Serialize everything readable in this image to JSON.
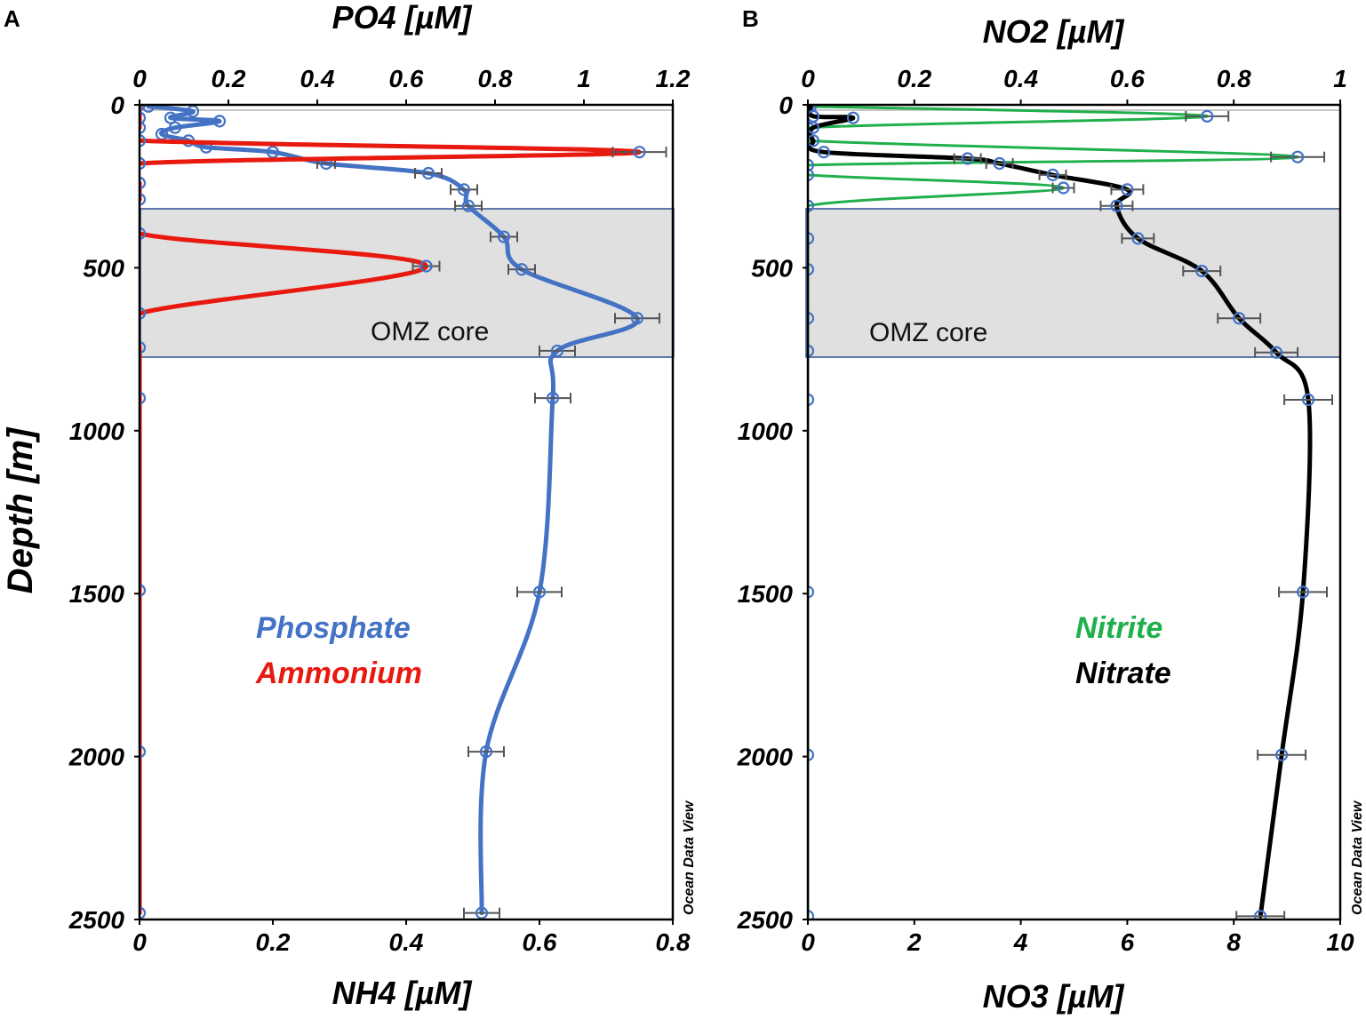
{
  "panels": {
    "A": {
      "letter": "A",
      "top_axis_title": "PO4 [µM]",
      "bottom_axis_title": "NH4 [µM]",
      "depth_title": "Depth [m]",
      "omz_label": "OMZ core",
      "watermark": "Ocean Data View",
      "legend": [
        {
          "label": "Phosphate",
          "color": "#4472c4"
        },
        {
          "label": "Ammonium",
          "color": "#e8190f"
        }
      ]
    },
    "B": {
      "letter": "B",
      "top_axis_title": "NO2 [µM]",
      "bottom_axis_title": "NO3 [µM]",
      "omz_label": "OMZ core",
      "watermark": "Ocean Data View",
      "legend": [
        {
          "label": "Nitrite",
          "color": "#1fb04c"
        },
        {
          "label": "Nitrate",
          "color": "#000000"
        }
      ]
    }
  },
  "chart_data": [
    {
      "type": "line",
      "panel": "A",
      "title": "",
      "ylabel": "Depth [m]",
      "ylim": [
        2500,
        0
      ],
      "yticks": [
        0,
        500,
        1000,
        1500,
        2000,
        2500
      ],
      "omz_core_depth_range": [
        315,
        770
      ],
      "top_axis": {
        "label": "PO4 [µM]",
        "lim": [
          0,
          1.2
        ],
        "ticks": [
          0,
          0.2,
          0.4,
          0.6,
          0.8,
          1,
          1.2
        ],
        "tick_labels": [
          "0",
          "0.2",
          "0.4",
          "0.6",
          "0.8",
          "1",
          "1.2"
        ]
      },
      "bottom_axis": {
        "label": "NH4 [µM]",
        "lim": [
          0,
          0.8
        ],
        "ticks": [
          0,
          0.2,
          0.4,
          0.6,
          0.8
        ],
        "tick_labels": [
          "0",
          "0.2",
          "0.4",
          "0.6",
          "0.8"
        ]
      },
      "series": [
        {
          "name": "Phosphate",
          "axis": "top",
          "color": "#4472c4",
          "depth": [
            5,
            20,
            40,
            50,
            70,
            90,
            110,
            130,
            145,
            180,
            210,
            260,
            310,
            405,
            505,
            655,
            755,
            900,
            1495,
            1985,
            2480
          ],
          "values": [
            0.02,
            0.12,
            0.07,
            0.18,
            0.08,
            0.05,
            0.11,
            0.15,
            0.3,
            0.42,
            0.65,
            0.73,
            0.74,
            0.82,
            0.86,
            1.12,
            0.94,
            0.93,
            0.9,
            0.78,
            0.77
          ],
          "xerr": [
            0,
            0,
            0,
            0,
            0,
            0,
            0,
            0,
            0,
            0.02,
            0.03,
            0.03,
            0.03,
            0.03,
            0.03,
            0.05,
            0.04,
            0.04,
            0.05,
            0.04,
            0.04
          ]
        },
        {
          "name": "Ammonium",
          "axis": "bottom",
          "color": "#e8190f",
          "depth": [
            0,
            40,
            70,
            110,
            145,
            180,
            240,
            290,
            395,
            495,
            640,
            745,
            900,
            1490,
            1985,
            2480
          ],
          "values": [
            0,
            0,
            0,
            0,
            0.75,
            0,
            0,
            0,
            0,
            0.43,
            0,
            0,
            0,
            0,
            0,
            0
          ],
          "xerr": [
            0,
            0,
            0,
            0,
            0.04,
            0,
            0,
            0,
            0,
            0.02,
            0,
            0,
            0,
            0,
            0,
            0
          ]
        }
      ]
    },
    {
      "type": "line",
      "panel": "B",
      "title": "",
      "ylabel": "Depth [m]",
      "ylim": [
        2500,
        0
      ],
      "yticks": [
        0,
        500,
        1000,
        1500,
        2000,
        2500
      ],
      "omz_core_depth_range": [
        315,
        770
      ],
      "top_axis": {
        "label": "NO2 [µM]",
        "lim": [
          0,
          1
        ],
        "ticks": [
          0,
          0.2,
          0.4,
          0.6,
          0.8,
          1
        ],
        "tick_labels": [
          "0",
          "0.2",
          "0.4",
          "0.6",
          "0.8",
          "1"
        ]
      },
      "bottom_axis": {
        "label": "NO3 [µM]",
        "lim": [
          0,
          10
        ],
        "ticks": [
          0,
          2,
          4,
          6,
          8,
          10
        ],
        "tick_labels": [
          "0",
          "2",
          "4",
          "6",
          "8",
          "10"
        ]
      },
      "series": [
        {
          "name": "Nitrite",
          "axis": "top",
          "color": "#1fb04c",
          "depth": [
            5,
            35,
            70,
            110,
            160,
            185,
            215,
            255,
            310,
            410,
            505,
            655,
            755,
            905,
            1495,
            1995,
            2490
          ],
          "values": [
            0,
            0.75,
            0,
            0,
            0.92,
            0,
            0,
            0.48,
            0,
            0,
            0,
            0,
            0,
            0,
            0,
            0,
            0
          ],
          "xerr": [
            0,
            0.04,
            0,
            0,
            0.05,
            0,
            0,
            0.02,
            0,
            0,
            0,
            0,
            0,
            0,
            0,
            0,
            0
          ]
        },
        {
          "name": "Nitrate",
          "axis": "bottom",
          "color": "#000000",
          "depth": [
            5,
            35,
            40,
            70,
            110,
            145,
            165,
            180,
            215,
            260,
            310,
            410,
            510,
            655,
            760,
            905,
            1495,
            1995,
            2490
          ],
          "values": [
            0.05,
            0.1,
            0.85,
            0.1,
            0.1,
            0.3,
            3.0,
            3.6,
            4.6,
            6.0,
            5.8,
            6.2,
            7.4,
            8.1,
            8.8,
            9.4,
            9.3,
            8.9,
            8.5
          ],
          "xerr": [
            0,
            0,
            0,
            0,
            0,
            0,
            0.25,
            0.25,
            0.25,
            0.3,
            0.3,
            0.3,
            0.35,
            0.4,
            0.4,
            0.45,
            0.45,
            0.45,
            0.45
          ]
        }
      ]
    }
  ]
}
